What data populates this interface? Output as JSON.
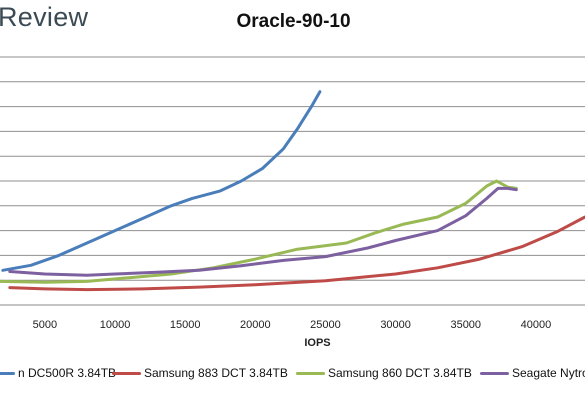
{
  "header": {
    "logo_text": "Review"
  },
  "chart_data": {
    "type": "line",
    "title": "Oracle-90-10",
    "xlabel": "IOPS",
    "ylabel": "",
    "xlim": [
      1800,
      43500
    ],
    "ylim": [
      0,
      10
    ],
    "x_ticks": [
      "5000",
      "10000",
      "15000",
      "20000",
      "25000",
      "30000",
      "35000",
      "40000"
    ],
    "grid": true,
    "legend_position": "bottom",
    "series": [
      {
        "name": "n DC500R 3.84TB",
        "color": "#4a7ebb",
        "points": [
          [
            2000,
            1.4
          ],
          [
            4000,
            1.6
          ],
          [
            6000,
            2.0
          ],
          [
            8000,
            2.5
          ],
          [
            10000,
            3.0
          ],
          [
            12000,
            3.5
          ],
          [
            14000,
            4.0
          ],
          [
            15500,
            4.3
          ],
          [
            17500,
            4.6
          ],
          [
            19000,
            5.0
          ],
          [
            20500,
            5.5
          ],
          [
            22000,
            6.3
          ],
          [
            23000,
            7.1
          ],
          [
            24000,
            8.0
          ],
          [
            24600,
            8.6
          ]
        ]
      },
      {
        "name": "Samsung 883 DCT 3.84TB",
        "color": "#be4b48",
        "points": [
          [
            2500,
            0.7
          ],
          [
            5000,
            0.65
          ],
          [
            8000,
            0.62
          ],
          [
            12000,
            0.65
          ],
          [
            16000,
            0.72
          ],
          [
            20000,
            0.82
          ],
          [
            25000,
            0.98
          ],
          [
            30000,
            1.25
          ],
          [
            33000,
            1.5
          ],
          [
            36000,
            1.85
          ],
          [
            39000,
            2.35
          ],
          [
            41500,
            2.95
          ],
          [
            43500,
            3.55
          ]
        ]
      },
      {
        "name": "Samsung 860 DCT 3.84TB",
        "color": "#98b954",
        "points": [
          [
            1800,
            0.95
          ],
          [
            5000,
            0.92
          ],
          [
            8000,
            0.95
          ],
          [
            11000,
            1.1
          ],
          [
            14000,
            1.25
          ],
          [
            17000,
            1.5
          ],
          [
            20000,
            1.85
          ],
          [
            23000,
            2.25
          ],
          [
            26500,
            2.5
          ],
          [
            28500,
            2.9
          ],
          [
            30500,
            3.25
          ],
          [
            33000,
            3.55
          ],
          [
            35000,
            4.1
          ],
          [
            36500,
            4.8
          ],
          [
            37200,
            5.0
          ],
          [
            38000,
            4.75
          ],
          [
            38600,
            4.7
          ]
        ]
      },
      {
        "name": "Seagate Nytro",
        "color": "#7d60a0",
        "points": [
          [
            2500,
            1.35
          ],
          [
            5000,
            1.25
          ],
          [
            8000,
            1.2
          ],
          [
            10000,
            1.25
          ],
          [
            13000,
            1.32
          ],
          [
            16000,
            1.4
          ],
          [
            19000,
            1.58
          ],
          [
            22000,
            1.8
          ],
          [
            25000,
            1.95
          ],
          [
            28000,
            2.3
          ],
          [
            30000,
            2.6
          ],
          [
            33000,
            3.0
          ],
          [
            35000,
            3.6
          ],
          [
            36500,
            4.3
          ],
          [
            37300,
            4.7
          ],
          [
            38000,
            4.7
          ],
          [
            38600,
            4.65
          ]
        ]
      }
    ]
  }
}
